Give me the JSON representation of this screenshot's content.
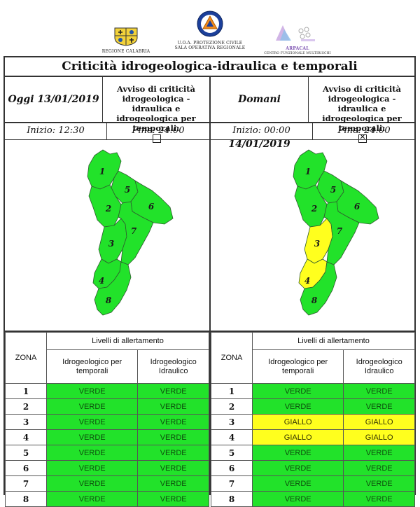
{
  "header": {
    "logos": [
      {
        "icon": "regione-calabria-emblem",
        "caption": "REGIONE CALABRIA"
      },
      {
        "icon": "protezione-civile-emblem",
        "caption": "U.O.A. PROTEZIONE CIVILE",
        "caption2": "SALA OPERATIVA REGIONALE"
      },
      {
        "icon": "arpacal-logo",
        "caption": "ARPACAL",
        "caption2": "CENTRO FUNZIONALE MULTIRISCHI"
      }
    ]
  },
  "title": "Criticità idrogeologica-idraulica e temporali",
  "panels": [
    {
      "date": "Oggi 13/01/2019",
      "avviso": [
        "Avviso di criticità",
        "idrogeologica - idraulica e",
        "idrogeologica per temporali:"
      ],
      "avviso_checked": false,
      "inizio": "Inizio: 12:30",
      "fine": "Fine: 24:00",
      "zone_colors": {
        "1": "#22e22a",
        "2": "#22e22a",
        "3": "#22e22a",
        "4": "#22e22a",
        "5": "#22e22a",
        "6": "#22e22a",
        "7": "#22e22a",
        "8": "#22e22a"
      },
      "table": {
        "zona_label": "ZONA",
        "livelli_label": "Livelli di allertamento",
        "col1": [
          "Idrogeologico per",
          "temporali"
        ],
        "col2": [
          "Idrogeologico",
          "Idraulico"
        ],
        "rows": [
          {
            "zona": "1",
            "c1": "VERDE",
            "c2": "VERDE"
          },
          {
            "zona": "2",
            "c1": "VERDE",
            "c2": "VERDE"
          },
          {
            "zona": "3",
            "c1": "VERDE",
            "c2": "VERDE"
          },
          {
            "zona": "4",
            "c1": "VERDE",
            "c2": "VERDE"
          },
          {
            "zona": "5",
            "c1": "VERDE",
            "c2": "VERDE"
          },
          {
            "zona": "6",
            "c1": "VERDE",
            "c2": "VERDE"
          },
          {
            "zona": "7",
            "c1": "VERDE",
            "c2": "VERDE"
          },
          {
            "zona": "8",
            "c1": "VERDE",
            "c2": "VERDE"
          }
        ]
      }
    },
    {
      "date": "Domani 14/01/2019",
      "avviso": [
        "Avviso di criticità",
        "idrogeologica - idraulica e",
        "idrogeologica per temporali:"
      ],
      "avviso_checked": true,
      "inizio": "Inizio: 00:00",
      "fine": "Fine: 24:00",
      "zone_colors": {
        "1": "#22e22a",
        "2": "#22e22a",
        "3": "#ffff1e",
        "4": "#ffff1e",
        "5": "#22e22a",
        "6": "#22e22a",
        "7": "#22e22a",
        "8": "#22e22a"
      },
      "table": {
        "zona_label": "ZONA",
        "livelli_label": "Livelli di allertamento",
        "col1": [
          "Idrogeologico per",
          "temporali"
        ],
        "col2": [
          "Idrogeologico",
          "Idraulico"
        ],
        "rows": [
          {
            "zona": "1",
            "c1": "VERDE",
            "c2": "VERDE"
          },
          {
            "zona": "2",
            "c1": "VERDE",
            "c2": "VERDE"
          },
          {
            "zona": "3",
            "c1": "GIALLO",
            "c2": "GIALLO"
          },
          {
            "zona": "4",
            "c1": "GIALLO",
            "c2": "GIALLO"
          },
          {
            "zona": "5",
            "c1": "VERDE",
            "c2": "VERDE"
          },
          {
            "zona": "6",
            "c1": "VERDE",
            "c2": "VERDE"
          },
          {
            "zona": "7",
            "c1": "VERDE",
            "c2": "VERDE"
          },
          {
            "zona": "8",
            "c1": "VERDE",
            "c2": "VERDE"
          }
        ]
      }
    }
  ],
  "colors": {
    "verde": "#22e22a",
    "giallo": "#ffff1e",
    "border": "#333333"
  }
}
